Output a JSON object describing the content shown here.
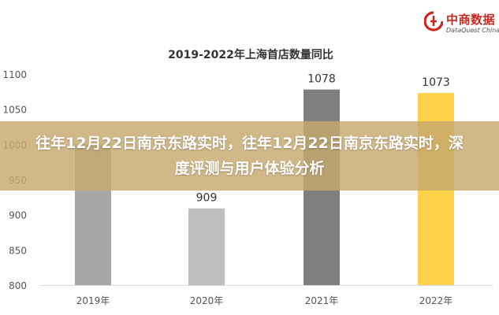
{
  "overlay": {
    "headline": "往年12月22日南京东路实时，往年12月22日南京东路实时，深度评测与用户体验分析"
  },
  "logo": {
    "name": "中商数据",
    "subtitle": "DataQuest China",
    "color": "#c8281e"
  },
  "chart_data": {
    "type": "bar",
    "title": "2019-2022年上海首店数量同比",
    "categories": [
      "2019年",
      "2020年",
      "2021年",
      "2022年"
    ],
    "values": [
      1000,
      909,
      1078,
      1073
    ],
    "data_labels": [
      "",
      "909",
      "1078",
      "1073"
    ],
    "colors": [
      "#a6a6a6",
      "#bfbfbf",
      "#7f7f7f",
      "#ffd24a"
    ],
    "ylim": [
      800,
      1100
    ],
    "yticks": [
      800,
      850,
      900,
      950,
      1000,
      1050,
      1100
    ],
    "grid": false,
    "xlabel": "",
    "ylabel": ""
  }
}
